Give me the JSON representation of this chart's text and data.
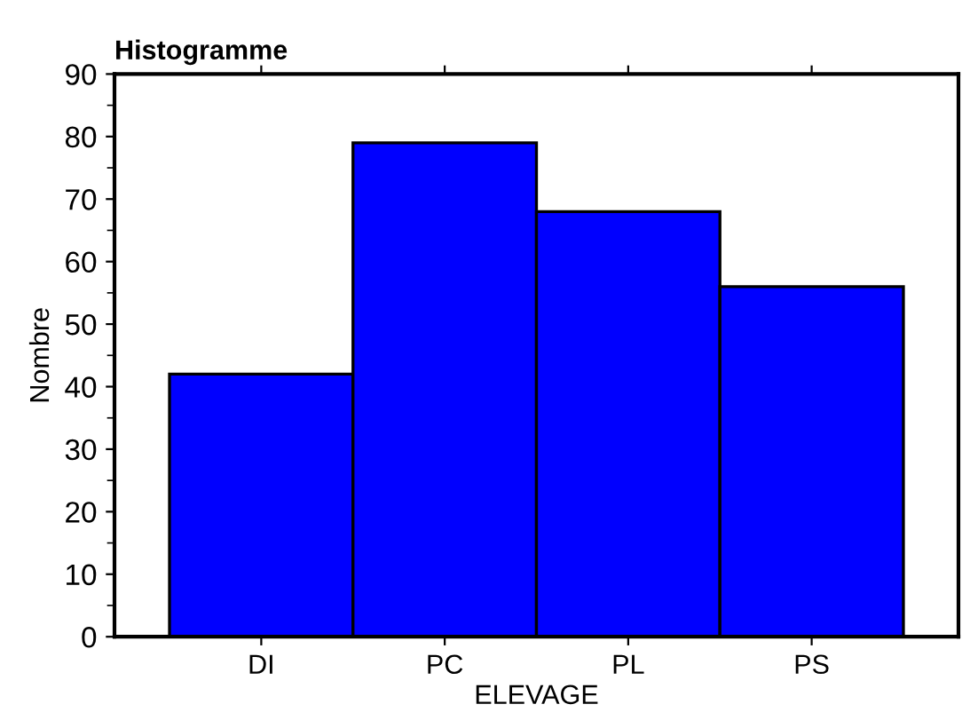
{
  "chart_data": {
    "type": "bar",
    "title": "Histogramme",
    "xlabel": "ELEVAGE",
    "ylabel": "Nombre",
    "categories": [
      "DI",
      "PC",
      "PL",
      "PS"
    ],
    "values": [
      42,
      79,
      68,
      56
    ],
    "color": "#0000ff",
    "ylim": [
      0,
      90
    ],
    "yticks": [
      0,
      10,
      20,
      30,
      40,
      50,
      60,
      70,
      80,
      90
    ],
    "grid": false
  }
}
